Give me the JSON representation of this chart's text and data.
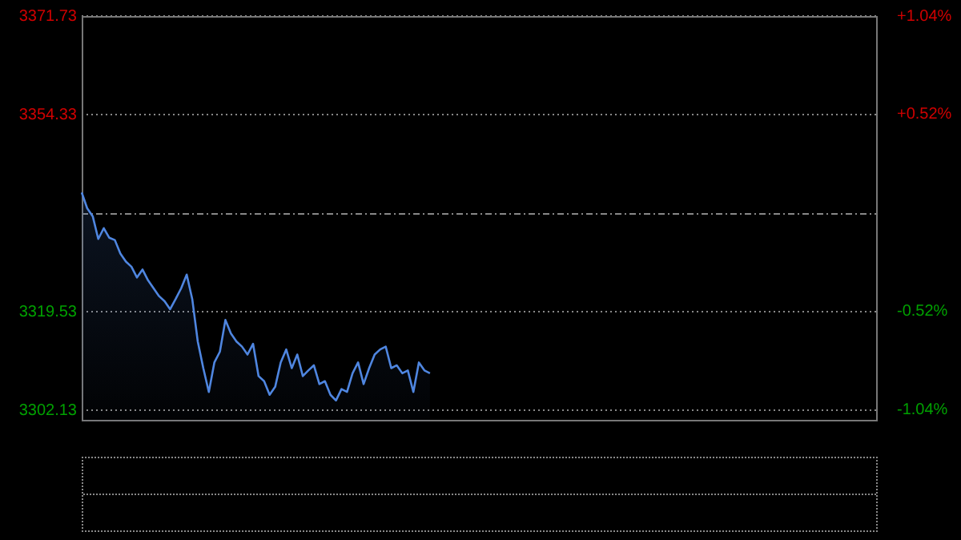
{
  "chart_data": {
    "type": "area",
    "categories": [
      null,
      null,
      null,
      null,
      null,
      null,
      null,
      null,
      null,
      null,
      null,
      null,
      null,
      null,
      null,
      null,
      null,
      null,
      null,
      null,
      null,
      null,
      null,
      null,
      null,
      null,
      null,
      null,
      null,
      null,
      null,
      null,
      null,
      null,
      null,
      null,
      null,
      null,
      null,
      null,
      null,
      null,
      null,
      null,
      null,
      null,
      null,
      null,
      null,
      null,
      null,
      null,
      null,
      null,
      null,
      null,
      null,
      null,
      null,
      null,
      null,
      null,
      null,
      null,
      null,
      null,
      null,
      null,
      null,
      null,
      null,
      null,
      null,
      null,
      null,
      null,
      null,
      null,
      null,
      null,
      null,
      null,
      null,
      null,
      null,
      null,
      null,
      null,
      null,
      null,
      null,
      null,
      null,
      null,
      null,
      null,
      null,
      null,
      null,
      null,
      null,
      null,
      null,
      null,
      null,
      null,
      null,
      null,
      null,
      null,
      null,
      null,
      null,
      null,
      null,
      null,
      null,
      null,
      null,
      null,
      null,
      null,
      null,
      null,
      null,
      null,
      null,
      null,
      null,
      null,
      null,
      null,
      null,
      null,
      null,
      null,
      null,
      null,
      null,
      null,
      null,
      null,
      null,
      null,
      null
    ],
    "series": [
      {
        "color": "#4f86e0",
        "values": [
          3340.6,
          3337.8,
          3336.4,
          3332.4,
          3334.3,
          3332.6,
          3332.2,
          3329.8,
          3328.4,
          3327.5,
          3325.6,
          3327.0,
          3325.1,
          3323.7,
          3322.3,
          3321.4,
          3320.0,
          3321.8,
          3323.7,
          3326.1,
          3321.8,
          3314.3,
          3309.6,
          3305.4,
          3310.6,
          3312.5,
          3318.1,
          3315.7,
          3314.3,
          3313.4,
          3312.0,
          3313.9,
          3308.2,
          3307.3,
          3304.9,
          3306.3,
          3310.6,
          3312.9,
          3309.6,
          3312.0,
          3308.2,
          3309.2,
          3310.1,
          3306.8,
          3307.3,
          3304.9,
          3303.9,
          3305.9,
          3305.4,
          3308.7,
          3310.6,
          3306.8,
          3309.6,
          3312.0,
          3312.9,
          3313.4,
          3309.6,
          3310.1,
          3308.7,
          3309.2,
          3305.4,
          3310.6,
          3309.2,
          3308.7,
          null,
          null,
          null,
          null,
          null,
          null,
          null,
          null,
          null,
          null,
          null,
          null,
          null,
          null,
          null,
          null,
          null,
          null,
          null,
          null,
          null,
          null,
          null,
          null,
          null,
          null,
          null,
          null,
          null,
          null,
          null,
          null,
          null,
          null,
          null,
          null,
          null,
          null,
          null,
          null,
          null,
          null,
          null,
          null,
          null,
          null,
          null,
          null,
          null,
          null,
          null,
          null,
          null,
          null,
          null,
          null,
          null,
          null,
          null,
          null,
          null,
          null,
          null,
          null,
          null,
          null,
          null,
          null,
          null,
          null,
          null,
          null,
          null,
          null,
          null,
          null,
          null,
          null,
          null,
          null,
          null
        ]
      }
    ],
    "ylim": [
      3300.2,
      3371.73
    ],
    "yticks": [
      3302.13,
      3319.53,
      3354.33,
      3371.73
    ],
    "y2lim": [
      -1.1,
      1.04
    ],
    "y2ticks": [
      {
        "value": -1.04,
        "label": "-1.04%"
      },
      {
        "value": -0.52,
        "label": "-0.52%"
      },
      {
        "value": 0.52,
        "label": "+0.52%"
      },
      {
        "value": 1.04,
        "label": "+1.04%"
      }
    ],
    "ref_lines": [
      {
        "axis": "y",
        "value": 3336.93,
        "color": "#888888",
        "line_style": "dashed"
      }
    ],
    "grid": "y",
    "tick_labels": "y",
    "legend": false,
    "marker": "none",
    "line_style": "solid"
  }
}
